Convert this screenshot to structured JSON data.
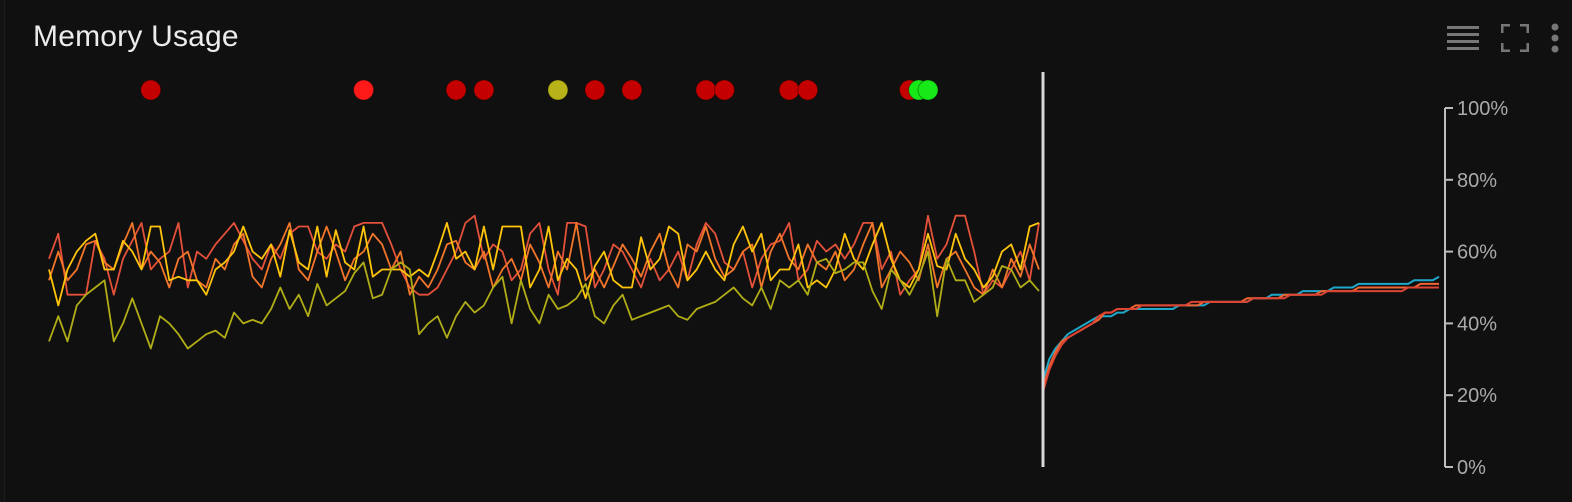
{
  "panel": {
    "title": "Memory Usage"
  },
  "icons": {
    "legend": "legend-list-icon",
    "fullscreen": "fullscreen-icon",
    "menu": "more-vert-icon"
  },
  "colors": {
    "background": "#101010",
    "grid_line": "#bdbdbd",
    "axis_text": "#aaaaaa",
    "title": "#ececec",
    "icon": "#777777",
    "marker_divider": "#d8d8d8",
    "status_critical": "#c40000",
    "status_critical_bright": "#ff1a1a",
    "status_warning": "#b8b219",
    "status_ok": "#17e817"
  },
  "chart_data": {
    "type": "line",
    "title": "Memory Usage",
    "xlabel": "",
    "ylabel": "",
    "ylim": [
      0,
      100
    ],
    "y_ticks": [
      "0%",
      "20%",
      "40%",
      "60%",
      "80%",
      "100%"
    ],
    "grid": false,
    "legend": "none",
    "historical": {
      "series": [
        {
          "color": "#e4513a",
          "values": [
            58,
            65,
            48,
            48,
            48,
            63,
            58,
            48,
            58,
            63,
            68,
            55,
            58,
            60,
            68,
            50,
            60,
            58,
            62,
            65,
            68,
            63,
            58,
            55,
            62,
            58,
            65,
            67,
            67,
            60,
            58,
            62,
            60,
            67,
            68,
            68,
            68,
            62,
            55,
            50,
            48,
            48,
            50,
            55,
            60,
            68,
            70,
            58,
            62,
            60,
            52,
            55,
            65,
            68,
            55,
            48,
            68,
            68,
            67,
            50,
            55,
            62,
            60,
            55,
            50,
            58,
            52,
            55,
            60,
            52,
            62,
            68,
            65,
            57,
            55,
            60,
            50,
            58,
            62,
            63,
            68,
            52,
            55,
            63,
            60,
            62,
            58,
            62,
            68,
            68,
            55,
            60,
            48,
            52,
            55,
            70,
            58,
            62,
            70,
            70,
            60,
            48,
            52,
            50,
            55,
            60,
            52,
            68
          ]
        },
        {
          "color": "#f2762a",
          "values": [
            52,
            60,
            52,
            55,
            62,
            63,
            57,
            55,
            62,
            68,
            55,
            60,
            57,
            50,
            58,
            60,
            52,
            50,
            58,
            55,
            62,
            65,
            53,
            50,
            58,
            62,
            68,
            55,
            52,
            60,
            67,
            60,
            52,
            58,
            60,
            65,
            62,
            55,
            60,
            48,
            53,
            50,
            55,
            62,
            63,
            57,
            55,
            60,
            50,
            55,
            58,
            52,
            62,
            57,
            50,
            60,
            55,
            68,
            52,
            55,
            50,
            56,
            62,
            58,
            53,
            60,
            65,
            55,
            50,
            62,
            60,
            67,
            58,
            53,
            55,
            60,
            62,
            50,
            60,
            65,
            58,
            55,
            62,
            57,
            55,
            60,
            52,
            55,
            62,
            68,
            50,
            55,
            60,
            57,
            52,
            62,
            50,
            58,
            60,
            55,
            50,
            48,
            55,
            50,
            58,
            53,
            62,
            55
          ]
        },
        {
          "color": "#ffc40c",
          "values": [
            55,
            45,
            55,
            60,
            63,
            65,
            55,
            55,
            63,
            60,
            55,
            67,
            67,
            52,
            53,
            52,
            52,
            48,
            55,
            57,
            60,
            67,
            60,
            58,
            62,
            53,
            66,
            57,
            55,
            67,
            53,
            66,
            57,
            55,
            67,
            53,
            55,
            55,
            55,
            53,
            55,
            53,
            60,
            68,
            58,
            60,
            55,
            67,
            55,
            67,
            67,
            67,
            50,
            55,
            67,
            52,
            58,
            55,
            47,
            56,
            60,
            52,
            50,
            50,
            64,
            55,
            58,
            67,
            65,
            52,
            55,
            60,
            55,
            52,
            62,
            67,
            60,
            65,
            52,
            55,
            55,
            62,
            50,
            52,
            50,
            55,
            65,
            58,
            55,
            62,
            68,
            58,
            52,
            50,
            55,
            65,
            56,
            55,
            65,
            58,
            55,
            50,
            53,
            60,
            62,
            55,
            67,
            68
          ]
        },
        {
          "color": "#b1ad17",
          "values": [
            35,
            42,
            35,
            45,
            48,
            50,
            52,
            35,
            40,
            47,
            40,
            33,
            42,
            40,
            37,
            33,
            35,
            37,
            38,
            36,
            43,
            40,
            41,
            40,
            44,
            50,
            44,
            48,
            42,
            51,
            45,
            47,
            49,
            54,
            57,
            47,
            48,
            55,
            57,
            55,
            37,
            40,
            42,
            36,
            42,
            46,
            43,
            45,
            50,
            53,
            40,
            52,
            44,
            40,
            48,
            44,
            45,
            47,
            51,
            42,
            40,
            45,
            48,
            41,
            42,
            43,
            44,
            45,
            42,
            41,
            44,
            45,
            46,
            48,
            50,
            47,
            45,
            50,
            44,
            52,
            50,
            52,
            48,
            57,
            58,
            54,
            55,
            57,
            57,
            49,
            44,
            55,
            52,
            48,
            53,
            60,
            42,
            58,
            52,
            52,
            46,
            48,
            50,
            56,
            55,
            50,
            52,
            49
          ]
        }
      ]
    },
    "forecast": {
      "series": [
        {
          "color": "#1fa8c9",
          "values": [
            24,
            30,
            33,
            35,
            37,
            38,
            39,
            40,
            41,
            42,
            42,
            42,
            43,
            43,
            44,
            44,
            44,
            44,
            44,
            44,
            44,
            44,
            45,
            45,
            45,
            45,
            45,
            46,
            46,
            46,
            46,
            46,
            46,
            46,
            47,
            47,
            47,
            48,
            48,
            48,
            48,
            48,
            49,
            49,
            49,
            49,
            49,
            50,
            50,
            50,
            50,
            51,
            51,
            51,
            51,
            51,
            51,
            51,
            51,
            51,
            52,
            52,
            52,
            52,
            53
          ]
        },
        {
          "color": "#f06433",
          "values": [
            22,
            28,
            32,
            35,
            36,
            37,
            38,
            39,
            40,
            41,
            43,
            43,
            44,
            44,
            44,
            45,
            45,
            45,
            45,
            45,
            45,
            45,
            45,
            45,
            45,
            45,
            46,
            46,
            46,
            46,
            46,
            46,
            46,
            47,
            47,
            47,
            47,
            47,
            47,
            48,
            48,
            48,
            48,
            48,
            48,
            49,
            49,
            49,
            49,
            49,
            49,
            50,
            50,
            50,
            50,
            50,
            50,
            50,
            50,
            50,
            50,
            51,
            51,
            51,
            51
          ]
        },
        {
          "color": "#dd4433",
          "values": [
            21,
            27,
            31,
            34,
            36,
            37,
            38,
            39,
            40,
            42,
            43,
            43,
            44,
            44,
            44,
            44,
            45,
            45,
            45,
            45,
            45,
            45,
            45,
            45,
            46,
            46,
            46,
            46,
            46,
            46,
            46,
            46,
            46,
            46,
            47,
            47,
            47,
            47,
            47,
            47,
            48,
            48,
            48,
            48,
            48,
            48,
            49,
            49,
            49,
            49,
            49,
            49,
            49,
            49,
            49,
            49,
            49,
            49,
            49,
            50,
            50,
            50,
            50,
            50,
            50
          ]
        }
      ]
    },
    "event_markers": [
      {
        "index": 11,
        "status": "critical"
      },
      {
        "index": 34,
        "status": "critical_bright"
      },
      {
        "index": 44,
        "status": "critical"
      },
      {
        "index": 47,
        "status": "critical"
      },
      {
        "index": 55,
        "status": "warning"
      },
      {
        "index": 59,
        "status": "critical"
      },
      {
        "index": 63,
        "status": "critical"
      },
      {
        "index": 71,
        "status": "critical"
      },
      {
        "index": 73,
        "status": "critical"
      },
      {
        "index": 80,
        "status": "critical"
      },
      {
        "index": 82,
        "status": "critical"
      },
      {
        "index": 93,
        "status": "critical"
      },
      {
        "index": 94,
        "status": "ok"
      },
      {
        "index": 95,
        "status": "ok"
      }
    ]
  }
}
